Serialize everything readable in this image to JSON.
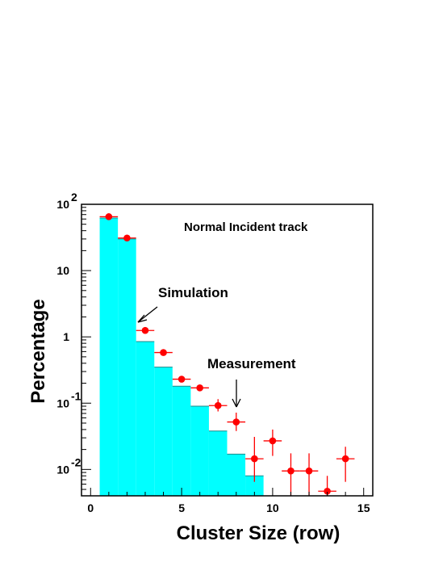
{
  "chart_data": {
    "type": "bar",
    "title": "Normal Incident track",
    "xlabel": "Cluster Size (row)",
    "ylabel": "Percentage",
    "xlim": [
      -0.5,
      15.5
    ],
    "ylim": [
      0.004,
      100
    ],
    "y_scale": "log",
    "x_ticks": [
      {
        "value": 0,
        "label": "0"
      },
      {
        "value": 5,
        "label": "5"
      },
      {
        "value": 10,
        "label": "10"
      },
      {
        "value": 15,
        "label": "15"
      }
    ],
    "y_tick_labels": [
      {
        "value": 100,
        "base": "10",
        "exp": "2"
      },
      {
        "value": 10,
        "base": "10",
        "exp": ""
      },
      {
        "value": 1,
        "base": "1",
        "exp": ""
      },
      {
        "value": 0.1,
        "base": "10",
        "exp": "-1"
      },
      {
        "value": 0.01,
        "base": "10",
        "exp": "-2"
      }
    ],
    "simulation": {
      "name": "Simulation",
      "color": "#00ffff",
      "bins": [
        {
          "x": 1,
          "value": 62
        },
        {
          "x": 2,
          "value": 30
        },
        {
          "x": 3,
          "value": 0.85
        },
        {
          "x": 4,
          "value": 0.35
        },
        {
          "x": 5,
          "value": 0.18
        },
        {
          "x": 6,
          "value": 0.09
        },
        {
          "x": 7,
          "value": 0.038
        },
        {
          "x": 8,
          "value": 0.017
        },
        {
          "x": 9,
          "value": 0.008
        }
      ]
    },
    "measurement": {
      "name": "Measurement",
      "color": "#ff0000",
      "points": [
        {
          "x": 1,
          "y": 65,
          "ylo": 65,
          "yhi": 65
        },
        {
          "x": 2,
          "y": 31,
          "ylo": 31,
          "yhi": 31
        },
        {
          "x": 3,
          "y": 1.25,
          "ylo": 1.25,
          "yhi": 1.25
        },
        {
          "x": 4,
          "y": 0.58,
          "ylo": 0.58,
          "yhi": 0.58
        },
        {
          "x": 5,
          "y": 0.23,
          "ylo": 0.23,
          "yhi": 0.23
        },
        {
          "x": 6,
          "y": 0.17,
          "ylo": 0.17,
          "yhi": 0.17
        },
        {
          "x": 7,
          "y": 0.092,
          "ylo": 0.075,
          "yhi": 0.115
        },
        {
          "x": 8,
          "y": 0.052,
          "ylo": 0.038,
          "yhi": 0.072
        },
        {
          "x": 9,
          "y": 0.0145,
          "ylo": 0.0065,
          "yhi": 0.031
        },
        {
          "x": 10,
          "y": 0.027,
          "ylo": 0.016,
          "yhi": 0.04
        },
        {
          "x": 11,
          "y": 0.0095,
          "ylo": 0.004,
          "yhi": 0.0175
        },
        {
          "x": 12,
          "y": 0.0095,
          "ylo": 0.004,
          "yhi": 0.0175
        },
        {
          "x": 13,
          "y": 0.0047,
          "ylo": 0.004,
          "yhi": 0.008
        },
        {
          "x": 14,
          "y": 0.0145,
          "ylo": 0.0065,
          "yhi": 0.022
        }
      ]
    },
    "annotations": {
      "simulation_label": "Simulation",
      "measurement_label": "Measurement"
    },
    "grid": false,
    "legend": "none"
  }
}
